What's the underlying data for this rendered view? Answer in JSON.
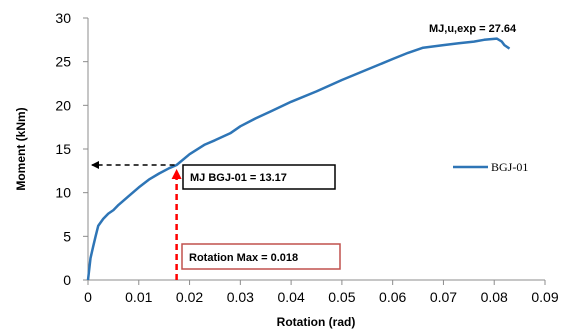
{
  "chart_data": {
    "type": "line",
    "title": "",
    "xlabel": "Rotation (rad)",
    "ylabel": "Moment (kNm)",
    "xlim": [
      0,
      0.09
    ],
    "ylim": [
      0,
      30
    ],
    "xticks": [
      "0",
      "0.01",
      "0.02",
      "0.03",
      "0.04",
      "0.05",
      "0.06",
      "0.07",
      "0.08",
      "0.09"
    ],
    "yticks": [
      "0",
      "5",
      "10",
      "15",
      "20",
      "25",
      "30"
    ],
    "grid": false,
    "legend_position": "right",
    "series": [
      {
        "name": "BGJ-01",
        "color": "#2e75b6",
        "x": [
          0,
          0.0005,
          0.001,
          0.0015,
          0.002,
          0.003,
          0.004,
          0.005,
          0.006,
          0.008,
          0.01,
          0.012,
          0.014,
          0.016,
          0.01745,
          0.02,
          0.023,
          0.025,
          0.028,
          0.03,
          0.033,
          0.036,
          0.04,
          0.045,
          0.05,
          0.055,
          0.06,
          0.063,
          0.066,
          0.07,
          0.073,
          0.076,
          0.078,
          0.0805,
          0.0815,
          0.082,
          0.083
        ],
        "y": [
          0,
          2.5,
          3.8,
          5.0,
          6.2,
          7.0,
          7.6,
          8.0,
          8.6,
          9.6,
          10.6,
          11.5,
          12.2,
          12.8,
          13.17,
          14.4,
          15.5,
          16.0,
          16.8,
          17.6,
          18.5,
          19.3,
          20.4,
          21.6,
          22.9,
          24.1,
          25.3,
          26.0,
          26.6,
          26.9,
          27.1,
          27.3,
          27.5,
          27.64,
          27.3,
          26.9,
          26.5
        ]
      }
    ],
    "annotations": {
      "peak_label": "MJ,u,exp = 27.64",
      "yield_label": "MJ BGJ-01 = 13.17",
      "rotation_label": "Rotation Max = 0.018",
      "yield_point": {
        "x": 0.01745,
        "y": 13.17
      },
      "peak_point": {
        "x": 0.0805,
        "y": 27.64
      },
      "arrow_color": "#000000",
      "rotation_arrow_color": "#ff0000",
      "yield_box_border": "#000000",
      "rotation_box_border": "#c0504d"
    }
  }
}
